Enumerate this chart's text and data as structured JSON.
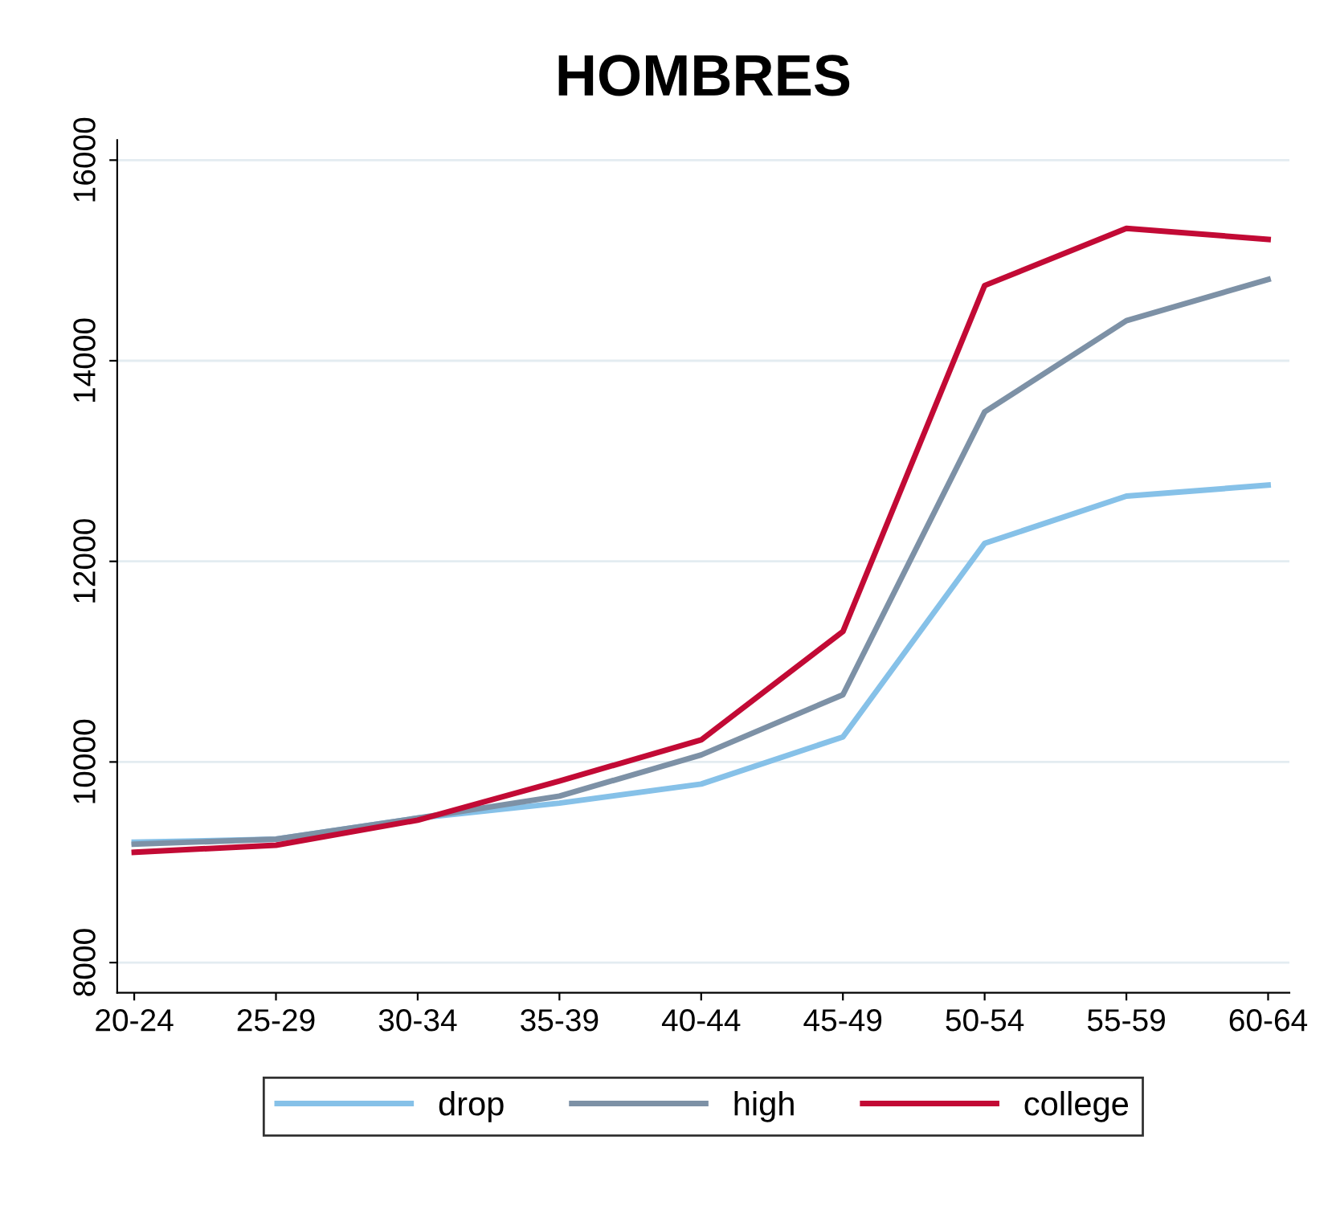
{
  "chart_data": {
    "type": "line",
    "title": "HOMBRES",
    "categories": [
      "20-24",
      "25-29",
      "30-34",
      "35-39",
      "40-44",
      "45-49",
      "50-54",
      "55-59",
      "60-64"
    ],
    "series": [
      {
        "name": "drop",
        "color": "#86c1e8",
        "values": [
          9200,
          9230,
          9440,
          9590,
          9780,
          10250,
          12180,
          12650,
          12760
        ]
      },
      {
        "name": "high",
        "color": "#7d91a6",
        "values": [
          9180,
          9230,
          9440,
          9660,
          10070,
          10670,
          13490,
          14400,
          14810
        ]
      },
      {
        "name": "college",
        "color": "#c20a35",
        "values": [
          9100,
          9170,
          9420,
          9810,
          10220,
          11300,
          14750,
          15320,
          15210
        ]
      }
    ],
    "ylim": [
      7700,
      16200
    ],
    "yticks": [
      8000,
      10000,
      12000,
      14000,
      16000
    ],
    "grid": "y",
    "legend": "bottom",
    "marker": "none",
    "line_style": "solid"
  }
}
